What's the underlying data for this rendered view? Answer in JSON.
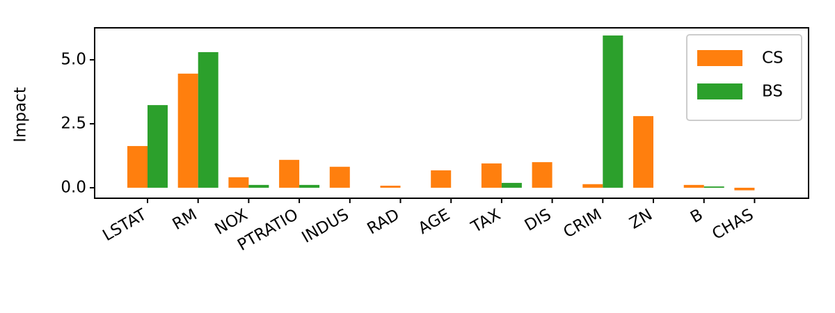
{
  "chart_data": {
    "type": "bar",
    "y_label": "Impact",
    "categories": [
      "LSTAT",
      "RM",
      "NOX",
      "PTRATIO",
      "INDUS",
      "RAD",
      "AGE",
      "TAX",
      "DIS",
      "CRIM",
      "ZN",
      "B",
      "CHAS"
    ],
    "series": [
      {
        "name": "CS",
        "color": "#ff7f0e",
        "values": [
          1.63,
          4.46,
          0.41,
          1.09,
          0.82,
          0.08,
          0.68,
          0.95,
          1.0,
          0.14,
          2.8,
          0.11,
          -0.1
        ]
      },
      {
        "name": "BS",
        "color": "#2ca02c",
        "values": [
          3.23,
          5.3,
          0.11,
          0.11,
          0,
          0,
          0,
          0.19,
          0,
          5.95,
          0,
          0.05,
          0
        ]
      }
    ],
    "ylim": [
      -0.41,
      6.25
    ],
    "yticks": [
      {
        "value": 0,
        "label": "0.0"
      },
      {
        "value": 2.5,
        "label": "2.5"
      },
      {
        "value": 5,
        "label": "5.0"
      }
    ],
    "legend": "upper right"
  }
}
